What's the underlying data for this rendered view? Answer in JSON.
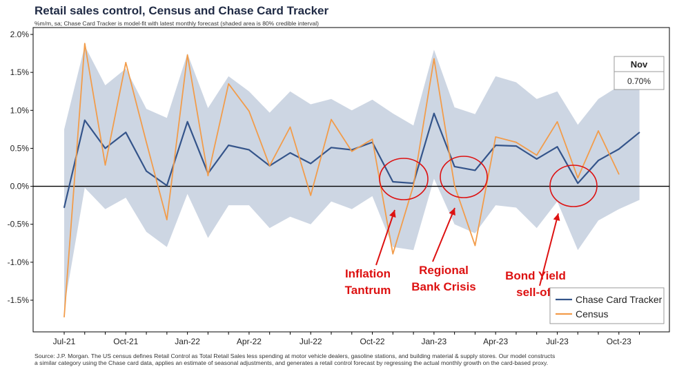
{
  "header": {
    "title": "Retail sales control, Census and Chase Card Tracker",
    "subtitle": "%m/m, sa; Chase Card Tracker is model-fit with latest monthly forecast (shaded area is 80% credible interval)"
  },
  "footnote": {
    "line1": "Source: J.P. Morgan. The US census defines Retail Control as Total Retail Sales less spending at motor vehicle dealers, gasoline stations, and building material & supply stores. Our model constructs",
    "line2": "a similar category using the Chase card data, applies an estimate of seasonal adjustments, and generates a retail control forecast by regressing the actual monthly growth on the card-based proxy."
  },
  "colors": {
    "tracker": "#34548a",
    "census": "#f29c4a",
    "band": "#cdd6e3",
    "annotation": "#dd1111",
    "axis": "#000000"
  },
  "chart_data": {
    "type": "line",
    "x": [
      "Jul-21",
      "Aug-21",
      "Sep-21",
      "Oct-21",
      "Nov-21",
      "Dec-21",
      "Jan-22",
      "Feb-22",
      "Mar-22",
      "Apr-22",
      "May-22",
      "Jun-22",
      "Jul-22",
      "Aug-22",
      "Sep-22",
      "Oct-22",
      "Nov-22",
      "Dec-22",
      "Jan-23",
      "Feb-23",
      "Mar-23",
      "Apr-23",
      "May-23",
      "Jun-23",
      "Jul-23",
      "Aug-23",
      "Sep-23",
      "Oct-23",
      "Nov-23"
    ],
    "xticks": [
      "Jul-21",
      "Oct-21",
      "Jan-22",
      "Apr-22",
      "Jul-22",
      "Oct-22",
      "Jan-23",
      "Apr-23",
      "Jul-23",
      "Oct-23"
    ],
    "yticks": [
      "-1.5%",
      "-1.0%",
      "-0.5%",
      "0.0%",
      "0.5%",
      "1.0%",
      "1.5%",
      "2.0%"
    ],
    "ylim": [
      -1.85,
      2.1
    ],
    "series": [
      {
        "name": "Chase Card Tracker",
        "values": [
          -0.28,
          0.87,
          0.5,
          0.71,
          0.2,
          0.01,
          0.85,
          0.17,
          0.54,
          0.48,
          0.27,
          0.44,
          0.3,
          0.51,
          0.48,
          0.58,
          0.06,
          0.04,
          0.96,
          0.26,
          0.21,
          0.54,
          0.53,
          0.36,
          0.52,
          0.04,
          0.34,
          0.49,
          0.71
        ]
      },
      {
        "name": "Census",
        "values": [
          -1.72,
          1.88,
          0.28,
          1.63,
          0.58,
          -0.44,
          1.73,
          0.14,
          1.35,
          0.99,
          0.27,
          0.78,
          -0.12,
          0.88,
          0.46,
          0.62,
          -0.89,
          0.01,
          1.68,
          0.01,
          -0.78,
          0.65,
          0.58,
          0.41,
          0.85,
          0.11,
          0.73,
          0.16,
          null
        ]
      }
    ],
    "band": {
      "upper": [
        0.75,
        1.85,
        1.33,
        1.55,
        1.02,
        0.9,
        1.75,
        1.03,
        1.45,
        1.25,
        0.97,
        1.25,
        1.08,
        1.15,
        1.0,
        1.14,
        0.96,
        0.8,
        1.8,
        1.04,
        0.95,
        1.45,
        1.37,
        1.15,
        1.25,
        0.81,
        1.15,
        1.32,
        1.58
      ],
      "lower": [
        -1.6,
        -0.02,
        -0.3,
        -0.15,
        -0.6,
        -0.8,
        -0.1,
        -0.68,
        -0.25,
        -0.25,
        -0.55,
        -0.4,
        -0.5,
        -0.2,
        -0.3,
        -0.13,
        -0.8,
        -0.84,
        0.1,
        -0.5,
        -0.62,
        -0.25,
        -0.28,
        -0.55,
        -0.2,
        -0.84,
        -0.45,
        -0.3,
        -0.18
      ]
    },
    "latest_box": {
      "label": "Nov",
      "value": "0.70%"
    },
    "annotations": [
      {
        "text": [
          "Inflation",
          "Tantrum"
        ],
        "index": 16.5
      },
      {
        "text": [
          "Regional",
          "Bank Crisis"
        ],
        "index": 19.5
      },
      {
        "text": [
          "Bond Yield",
          "sell-off"
        ],
        "index": 25.5
      }
    ],
    "legend_position": "bottom-right",
    "grid": false
  }
}
